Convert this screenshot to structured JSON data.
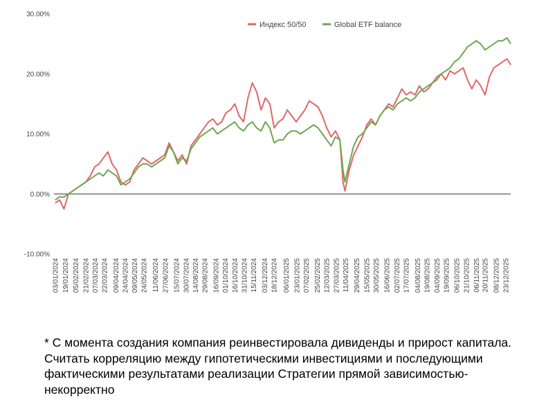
{
  "chart_data": {
    "type": "line",
    "title": "",
    "xlabel": "",
    "ylabel": "",
    "ylim": [
      -10,
      30
    ],
    "y_ticks": [
      "30.00%",
      "20.00%",
      "10.00%",
      "0.00%",
      "-10.00%"
    ],
    "y_tick_values": [
      30,
      20,
      10,
      0,
      -10
    ],
    "grid": false,
    "legend_position": "top-right",
    "x_start_date": "2024-01-01",
    "x_end_date": "2025-12-31",
    "x_tick_labels": [
      "03/01/2024",
      "19/01/2024",
      "05/02/2024",
      "21/02/2024",
      "07/03/2024",
      "22/03/2024",
      "09/04/2024",
      "24/04/2024",
      "09/05/2024",
      "24/05/2024",
      "11/06/2024",
      "27/06/2024",
      "15/07/2024",
      "30/07/2024",
      "14/08/2024",
      "29/08/2024",
      "16/09/2024",
      "01/10/2024",
      "16/10/2024",
      "31/10/2024",
      "15/11/2024",
      "03/12/2024",
      "18/12/2024",
      "06/01/2025",
      "23/01/2025",
      "07/02/2025",
      "25/02/2025",
      "12/03/2025",
      "27/03/2025",
      "11/04/2025",
      "29/04/2025",
      "15/05/2025",
      "30/05/2025",
      "16/06/2025",
      "02/07/2025",
      "17/07/2025",
      "04/08/2025",
      "19/08/2025",
      "04/09/2025",
      "19/09/2025",
      "06/10/2025",
      "21/10/2025",
      "06/11/2025",
      "20/11/2025",
      "08/12/2025",
      "23/12/2025"
    ],
    "series": [
      {
        "name": "Индекс 50/50",
        "color": "#e06666",
        "x": [
          "2024-01-03",
          "2024-01-10",
          "2024-01-17",
          "2024-01-24",
          "2024-01-31",
          "2024-02-07",
          "2024-02-14",
          "2024-02-21",
          "2024-02-28",
          "2024-03-06",
          "2024-03-13",
          "2024-03-20",
          "2024-03-27",
          "2024-04-03",
          "2024-04-10",
          "2024-04-17",
          "2024-04-24",
          "2024-05-01",
          "2024-05-08",
          "2024-05-15",
          "2024-05-22",
          "2024-05-29",
          "2024-06-05",
          "2024-06-12",
          "2024-06-19",
          "2024-06-26",
          "2024-07-03",
          "2024-07-10",
          "2024-07-17",
          "2024-07-24",
          "2024-07-31",
          "2024-08-07",
          "2024-08-14",
          "2024-08-21",
          "2024-08-28",
          "2024-09-04",
          "2024-09-11",
          "2024-09-18",
          "2024-09-25",
          "2024-10-02",
          "2024-10-09",
          "2024-10-16",
          "2024-10-23",
          "2024-10-30",
          "2024-11-06",
          "2024-11-13",
          "2024-11-20",
          "2024-11-27",
          "2024-12-04",
          "2024-12-11",
          "2024-12-18",
          "2024-12-25",
          "2025-01-01",
          "2025-01-08",
          "2025-01-15",
          "2025-01-22",
          "2025-01-29",
          "2025-02-05",
          "2025-02-12",
          "2025-02-19",
          "2025-02-26",
          "2025-03-05",
          "2025-03-12",
          "2025-03-19",
          "2025-03-26",
          "2025-04-02",
          "2025-04-07",
          "2025-04-10",
          "2025-04-17",
          "2025-04-24",
          "2025-05-01",
          "2025-05-08",
          "2025-05-15",
          "2025-05-22",
          "2025-05-29",
          "2025-06-05",
          "2025-06-12",
          "2025-06-19",
          "2025-06-26",
          "2025-07-03",
          "2025-07-10",
          "2025-07-17",
          "2025-07-24",
          "2025-07-31",
          "2025-08-07",
          "2025-08-14",
          "2025-08-21",
          "2025-08-28",
          "2025-09-04",
          "2025-09-11",
          "2025-09-18",
          "2025-09-25",
          "2025-10-02",
          "2025-10-09",
          "2025-10-16",
          "2025-10-23",
          "2025-10-30",
          "2025-11-06",
          "2025-11-13",
          "2025-11-20",
          "2025-11-27",
          "2025-12-04",
          "2025-12-11",
          "2025-12-18",
          "2025-12-25",
          "2025-12-31"
        ],
        "values": [
          -1.5,
          -1.0,
          -2.5,
          0.0,
          0.5,
          1.0,
          1.5,
          2.0,
          3.0,
          4.5,
          5.0,
          6.0,
          7.0,
          5.0,
          4.0,
          2.0,
          1.5,
          2.0,
          4.0,
          5.0,
          6.0,
          5.5,
          5.0,
          5.5,
          6.0,
          6.5,
          8.5,
          7.0,
          5.5,
          6.5,
          5.0,
          8.0,
          9.0,
          10.0,
          11.0,
          12.0,
          12.5,
          11.5,
          12.0,
          13.5,
          14.0,
          15.0,
          13.0,
          12.0,
          16.0,
          18.5,
          17.0,
          14.0,
          16.0,
          15.0,
          11.0,
          12.0,
          12.5,
          14.0,
          13.0,
          12.0,
          13.0,
          14.0,
          15.5,
          15.0,
          14.5,
          13.0,
          11.0,
          9.5,
          10.5,
          9.0,
          2.0,
          0.5,
          4.0,
          6.5,
          8.0,
          9.5,
          11.5,
          12.5,
          11.5,
          13.0,
          14.0,
          15.0,
          14.5,
          16.0,
          17.5,
          16.5,
          17.0,
          16.5,
          18.0,
          17.0,
          17.5,
          18.5,
          19.5,
          20.0,
          19.0,
          20.5,
          20.0,
          20.5,
          21.0,
          19.0,
          17.5,
          19.0,
          18.0,
          16.5,
          19.5,
          21.0,
          21.5,
          22.0,
          22.5,
          21.5
        ]
      },
      {
        "name": "Global ETF balance",
        "color": "#6aa84f",
        "x": [
          "2024-01-03",
          "2024-01-10",
          "2024-01-17",
          "2024-01-24",
          "2024-01-31",
          "2024-02-07",
          "2024-02-14",
          "2024-02-21",
          "2024-02-28",
          "2024-03-06",
          "2024-03-13",
          "2024-03-20",
          "2024-03-27",
          "2024-04-03",
          "2024-04-10",
          "2024-04-17",
          "2024-04-24",
          "2024-05-01",
          "2024-05-08",
          "2024-05-15",
          "2024-05-22",
          "2024-05-29",
          "2024-06-05",
          "2024-06-12",
          "2024-06-19",
          "2024-06-26",
          "2024-07-03",
          "2024-07-10",
          "2024-07-17",
          "2024-07-24",
          "2024-07-31",
          "2024-08-07",
          "2024-08-14",
          "2024-08-21",
          "2024-08-28",
          "2024-09-04",
          "2024-09-11",
          "2024-09-18",
          "2024-09-25",
          "2024-10-02",
          "2024-10-09",
          "2024-10-16",
          "2024-10-23",
          "2024-10-30",
          "2024-11-06",
          "2024-11-13",
          "2024-11-20",
          "2024-11-27",
          "2024-12-04",
          "2024-12-11",
          "2024-12-18",
          "2024-12-25",
          "2025-01-01",
          "2025-01-08",
          "2025-01-15",
          "2025-01-22",
          "2025-01-29",
          "2025-02-05",
          "2025-02-12",
          "2025-02-19",
          "2025-02-26",
          "2025-03-05",
          "2025-03-12",
          "2025-03-19",
          "2025-03-26",
          "2025-04-02",
          "2025-04-07",
          "2025-04-10",
          "2025-04-17",
          "2025-04-24",
          "2025-05-01",
          "2025-05-08",
          "2025-05-15",
          "2025-05-22",
          "2025-05-29",
          "2025-06-05",
          "2025-06-12",
          "2025-06-19",
          "2025-06-26",
          "2025-07-03",
          "2025-07-10",
          "2025-07-17",
          "2025-07-24",
          "2025-07-31",
          "2025-08-07",
          "2025-08-14",
          "2025-08-21",
          "2025-08-28",
          "2025-09-04",
          "2025-09-11",
          "2025-09-18",
          "2025-09-25",
          "2025-10-02",
          "2025-10-09",
          "2025-10-16",
          "2025-10-23",
          "2025-10-30",
          "2025-11-06",
          "2025-11-13",
          "2025-11-20",
          "2025-11-27",
          "2025-12-04",
          "2025-12-11",
          "2025-12-18",
          "2025-12-25",
          "2025-12-31"
        ],
        "values": [
          -1.0,
          -0.5,
          -0.5,
          0.0,
          0.5,
          1.0,
          1.5,
          2.0,
          2.5,
          3.0,
          3.5,
          3.0,
          4.0,
          3.5,
          3.0,
          1.5,
          2.0,
          2.5,
          3.5,
          4.5,
          5.0,
          5.0,
          4.5,
          5.0,
          5.5,
          6.0,
          8.0,
          7.0,
          5.0,
          6.0,
          5.5,
          7.5,
          8.5,
          9.5,
          10.0,
          10.5,
          11.0,
          10.0,
          10.5,
          11.0,
          11.5,
          12.0,
          11.0,
          10.5,
          11.5,
          12.0,
          11.0,
          10.5,
          12.0,
          11.0,
          8.5,
          9.0,
          9.0,
          10.0,
          10.5,
          10.5,
          10.0,
          10.5,
          11.0,
          11.5,
          11.0,
          10.0,
          9.0,
          8.0,
          9.5,
          9.0,
          4.0,
          2.0,
          5.0,
          8.0,
          9.5,
          10.0,
          11.0,
          12.0,
          11.5,
          13.0,
          14.0,
          14.5,
          14.0,
          15.0,
          15.5,
          16.0,
          15.5,
          16.0,
          17.0,
          17.5,
          18.0,
          18.5,
          19.0,
          20.0,
          20.5,
          21.0,
          22.0,
          22.5,
          23.5,
          24.5,
          25.0,
          25.5,
          25.0,
          24.0,
          24.5,
          25.0,
          25.5,
          25.5,
          26.0,
          25.0
        ]
      }
    ]
  },
  "footnote": "* С момента создания компания реинвестировала дивиденды и прирост капитала. Считать корреляцию между гипотетическими инвестициями и последующими фактическими результатами реализации Стратегии прямой зависимостью-некорректно"
}
